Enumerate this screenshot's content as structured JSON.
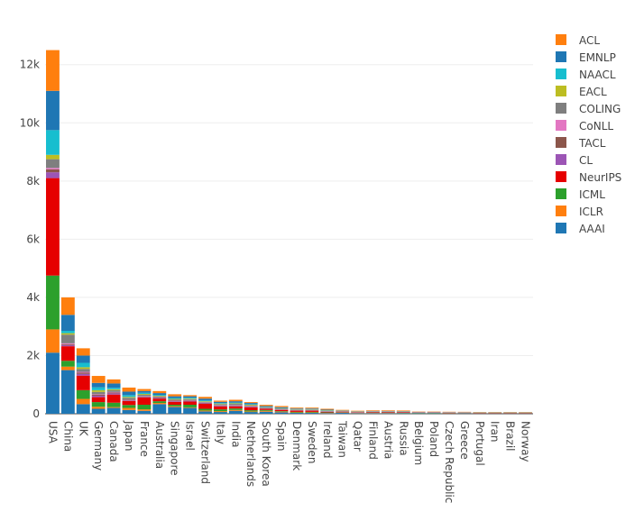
{
  "chart_data": {
    "type": "bar",
    "stacked": true,
    "categories": [
      "USA",
      "China",
      "UK",
      "Germany",
      "Canada",
      "Japan",
      "France",
      "Australia",
      "Singapore",
      "Israel",
      "Switzerland",
      "Italy",
      "India",
      "Netherlands",
      "South Korea",
      "Spain",
      "Denmark",
      "Sweden",
      "Ireland",
      "Taiwan",
      "Qatar",
      "Finland",
      "Austria",
      "Russia",
      "Belgium",
      "Poland",
      "Czech Republic",
      "Greece",
      "Portugal",
      "Iran",
      "Brazil",
      "Norway"
    ],
    "yticks": [
      0,
      2000,
      4000,
      6000,
      8000,
      10000,
      12000
    ],
    "ytick_labels": [
      "0",
      "2k",
      "4k",
      "6k",
      "8k",
      "10k",
      "12k"
    ],
    "ylim": [
      0,
      13200
    ],
    "gridlines": true,
    "legend_position": "right",
    "series": [
      {
        "name": "AAAI",
        "color": "#1f77b4",
        "values": [
          2100,
          1500,
          330,
          170,
          200,
          130,
          100,
          330,
          230,
          200,
          80,
          60,
          100,
          60,
          70,
          50,
          30,
          30,
          20,
          30,
          20,
          20,
          20,
          15,
          15,
          15,
          10,
          15,
          10,
          10,
          10,
          10
        ]
      },
      {
        "name": "ICLR",
        "color": "#ff7f0e",
        "values": [
          800,
          120,
          180,
          70,
          30,
          70,
          50,
          40,
          30,
          20,
          30,
          30,
          30,
          20,
          30,
          20,
          15,
          15,
          10,
          10,
          10,
          10,
          10,
          8,
          8,
          8,
          8,
          6,
          6,
          6,
          6,
          6
        ]
      },
      {
        "name": "ICML",
        "color": "#2ca02c",
        "values": [
          1850,
          200,
          300,
          160,
          150,
          100,
          160,
          60,
          50,
          90,
          60,
          60,
          50,
          40,
          30,
          20,
          20,
          20,
          15,
          10,
          5,
          10,
          10,
          10,
          8,
          8,
          6,
          5,
          5,
          5,
          5,
          5
        ]
      },
      {
        "name": "NeurIPS",
        "color": "#e60000",
        "values": [
          3350,
          500,
          500,
          170,
          280,
          140,
          250,
          90,
          100,
          110,
          170,
          100,
          70,
          100,
          40,
          40,
          40,
          40,
          20,
          20,
          10,
          20,
          20,
          20,
          10,
          10,
          10,
          8,
          8,
          8,
          8,
          8
        ]
      },
      {
        "name": "CL",
        "color": "#9c55b5",
        "values": [
          200,
          40,
          60,
          50,
          40,
          20,
          20,
          20,
          20,
          20,
          20,
          20,
          20,
          20,
          10,
          10,
          10,
          10,
          10,
          5,
          5,
          5,
          5,
          5,
          5,
          5,
          5,
          3,
          3,
          3,
          3,
          3
        ]
      },
      {
        "name": "TACL",
        "color": "#8c564b",
        "values": [
          100,
          30,
          40,
          30,
          30,
          20,
          20,
          20,
          20,
          20,
          20,
          20,
          20,
          20,
          10,
          10,
          10,
          10,
          10,
          5,
          5,
          5,
          5,
          5,
          3,
          3,
          3,
          3,
          3,
          3,
          3,
          3
        ]
      },
      {
        "name": "CoNLL",
        "color": "#e377c2",
        "values": [
          50,
          30,
          30,
          20,
          20,
          10,
          10,
          10,
          10,
          10,
          10,
          10,
          10,
          10,
          5,
          5,
          5,
          5,
          5,
          3,
          3,
          3,
          3,
          3,
          2,
          2,
          2,
          2,
          2,
          2,
          2,
          2
        ]
      },
      {
        "name": "COLING",
        "color": "#7f7f7f",
        "values": [
          300,
          300,
          100,
          80,
          60,
          60,
          40,
          30,
          30,
          30,
          20,
          30,
          40,
          20,
          20,
          20,
          10,
          10,
          10,
          10,
          5,
          5,
          5,
          5,
          3,
          3,
          3,
          3,
          3,
          3,
          3,
          3
        ]
      },
      {
        "name": "EACL",
        "color": "#bcbd22",
        "values": [
          150,
          50,
          60,
          60,
          30,
          30,
          30,
          20,
          20,
          20,
          20,
          20,
          20,
          20,
          10,
          10,
          10,
          10,
          10,
          5,
          5,
          5,
          5,
          5,
          3,
          3,
          3,
          3,
          3,
          3,
          3,
          3
        ]
      },
      {
        "name": "NAACL",
        "color": "#17becf",
        "values": [
          850,
          80,
          150,
          100,
          50,
          60,
          40,
          30,
          30,
          30,
          30,
          20,
          20,
          20,
          10,
          10,
          10,
          10,
          10,
          5,
          5,
          5,
          5,
          5,
          3,
          3,
          3,
          3,
          3,
          3,
          3,
          3
        ]
      },
      {
        "name": "EMNLP",
        "color": "#1f77b4",
        "values": [
          1350,
          550,
          250,
          150,
          150,
          120,
          60,
          60,
          60,
          50,
          60,
          40,
          50,
          40,
          30,
          30,
          20,
          20,
          20,
          10,
          10,
          10,
          10,
          10,
          5,
          5,
          5,
          5,
          5,
          5,
          5,
          5
        ]
      },
      {
        "name": "ACL",
        "color": "#ff7f0e",
        "values": [
          1400,
          600,
          250,
          240,
          140,
          140,
          70,
          70,
          70,
          40,
          60,
          40,
          50,
          30,
          40,
          40,
          30,
          30,
          30,
          20,
          20,
          20,
          20,
          20,
          10,
          10,
          10,
          10,
          10,
          10,
          10,
          10
        ]
      }
    ]
  }
}
